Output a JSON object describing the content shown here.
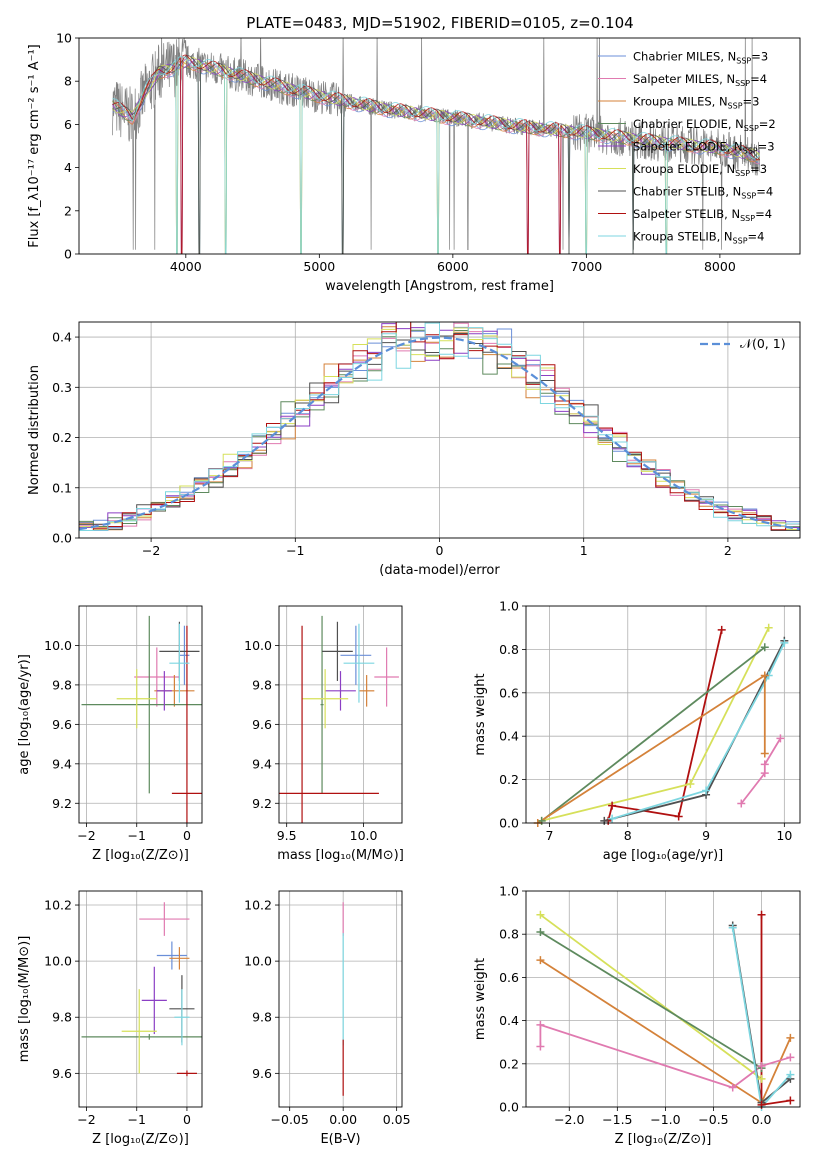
{
  "figure": {
    "title": "PLATE=0483, MJD=51902, FIBERID=0105, z=0.104"
  },
  "colors": {
    "Chabrier MILES": "#6b8fd8",
    "Salpeter MILES": "#e07ab0",
    "Kroupa MILES": "#d4823a",
    "Chabrier ELODIE": "#5e8a5e",
    "Salpeter ELODIE": "#8b3fc4",
    "Kroupa ELODIE": "#d6e05a",
    "Chabrier STELIB": "#505050",
    "Salpeter STELIB": "#b01010",
    "Kroupa STELIB": "#7dd6e0",
    "data": "#808080",
    "normal": "#5b8fd8"
  },
  "chart_data": [
    {
      "type": "line",
      "title": "PLATE=0483, MJD=51902, FIBERID=0105, z=0.104",
      "xlabel": "wavelength [Angstrom, rest frame]",
      "ylabel": "Flux [f_λ10⁻¹⁷ erg cm⁻² s⁻¹ A⁻¹]",
      "xlim": [
        3200,
        8600
      ],
      "ylim": [
        0,
        10
      ],
      "xticks": [
        4000,
        5000,
        6000,
        7000,
        8000
      ],
      "yticks": [
        0,
        2,
        4,
        6,
        8,
        10
      ],
      "legend": [
        "Chabrier MILES, N_SSP=3",
        "Salpeter MILES, N_SSP=4",
        "Kroupa MILES, N_SSP=3",
        "Chabrier ELODIE, N_SSP=2",
        "Salpeter ELODIE, N_SSP=3",
        "Kroupa ELODIE, N_SSP=3",
        "Chabrier STELIB, N_SSP=4",
        "Salpeter STELIB, N_SSP=4",
        "Kroupa STELIB, N_SSP=4"
      ],
      "legend_placement": "top-right",
      "continuum": {
        "x": [
          3450,
          3600,
          3700,
          3800,
          3900,
          4000,
          4200,
          4500,
          4800,
          5000,
          5500,
          6000,
          6500,
          7000,
          7500,
          8000,
          8300
        ],
        "y": [
          6.9,
          6.3,
          7.5,
          8.4,
          8.6,
          8.9,
          8.6,
          8.1,
          7.6,
          7.3,
          6.7,
          6.3,
          5.9,
          5.6,
          5.2,
          4.9,
          4.5
        ]
      }
    },
    {
      "type": "histogram",
      "xlabel": "(data-model)/error",
      "ylabel": "Normed distribution",
      "xlim": [
        -2.5,
        2.5
      ],
      "ylim": [
        0,
        0.43
      ],
      "xticks": [
        -2,
        -1,
        0,
        1,
        2
      ],
      "yticks": [
        0.0,
        0.1,
        0.2,
        0.3,
        0.4
      ],
      "bin_width": 0.1,
      "grid": true,
      "reference_curve": "N(0,1)",
      "legend": [
        "𝒩(0, 1)"
      ],
      "legend_placement": "top-right"
    },
    {
      "type": "scatter",
      "xlabel": "Z [log₁₀(Z/Z⊙)]",
      "ylabel": "age  [log₁₀(age/yr)]",
      "xlim": [
        -2.15,
        0.3
      ],
      "ylim": [
        9.1,
        10.2
      ],
      "xticks": [
        -2,
        -1,
        0
      ],
      "yticks": [
        9.2,
        9.4,
        9.6,
        9.8,
        10.0
      ],
      "points": [
        {
          "name": "Chabrier MILES",
          "x": -0.05,
          "y": 9.95,
          "xerr": 0.1,
          "yerr": 0.15
        },
        {
          "name": "Salpeter MILES",
          "x": -0.6,
          "y": 9.84,
          "xerr": 0.45,
          "yerr": 0.15
        },
        {
          "name": "Kroupa MILES",
          "x": -0.25,
          "y": 9.77,
          "xerr": 0.4,
          "yerr": 0.08
        },
        {
          "name": "Chabrier ELODIE",
          "x": -0.75,
          "y": 9.7,
          "xerr": 1.35,
          "yerr": 0.45
        },
        {
          "name": "Salpeter ELODIE",
          "x": -0.45,
          "y": 9.77,
          "xerr": 0.15,
          "yerr": 0.1
        },
        {
          "name": "Kroupa ELODIE",
          "x": -1.0,
          "y": 9.73,
          "xerr": 0.4,
          "yerr": 0.15
        },
        {
          "name": "Chabrier STELIB",
          "x": -0.15,
          "y": 9.97,
          "xerr": 0.4,
          "yerr": 0.15
        },
        {
          "name": "Salpeter STELIB",
          "x": 0.0,
          "y": 9.25,
          "xerr": 0.3,
          "yerr": 0.85
        },
        {
          "name": "Kroupa STELIB",
          "x": -0.15,
          "y": 9.91,
          "xerr": 0.2,
          "yerr": 0.2
        }
      ]
    },
    {
      "type": "scatter",
      "xlabel": "mass [log₁₀(M/M⊙)]",
      "xlim": [
        9.45,
        10.25
      ],
      "ylim": [
        9.1,
        10.2
      ],
      "xticks": [
        9.5,
        10.0
      ],
      "yticks": [
        9.2,
        9.4,
        9.6,
        9.8,
        10.0
      ],
      "points": [
        {
          "name": "Chabrier MILES",
          "x": 9.95,
          "y": 9.95,
          "xerr": 0.1,
          "yerr": 0.15
        },
        {
          "name": "Salpeter MILES",
          "x": 10.15,
          "y": 9.84,
          "xerr": 0.08,
          "yerr": 0.15
        },
        {
          "name": "Kroupa MILES",
          "x": 10.02,
          "y": 9.77,
          "xerr": 0.05,
          "yerr": 0.08
        },
        {
          "name": "Chabrier ELODIE",
          "x": 9.73,
          "y": 9.7,
          "xerr": 0.01,
          "yerr": 0.45
        },
        {
          "name": "Salpeter ELODIE",
          "x": 9.85,
          "y": 9.77,
          "xerr": 0.1,
          "yerr": 0.1
        },
        {
          "name": "Kroupa ELODIE",
          "x": 9.75,
          "y": 9.73,
          "xerr": 0.15,
          "yerr": 0.15
        },
        {
          "name": "Chabrier STELIB",
          "x": 9.83,
          "y": 9.97,
          "xerr": 0.1,
          "yerr": 0.15
        },
        {
          "name": "Salpeter STELIB",
          "x": 9.6,
          "y": 9.25,
          "xerr": 0.5,
          "yerr": 0.85
        },
        {
          "name": "Kroupa STELIB",
          "x": 9.97,
          "y": 9.91,
          "xerr": 0.1,
          "yerr": 0.2
        }
      ]
    },
    {
      "type": "line",
      "xlabel": "age  [log₁₀(age/yr)]",
      "ylabel": "mass weight",
      "xlim": [
        6.7,
        10.2
      ],
      "ylim": [
        0,
        1
      ],
      "xticks": [
        7,
        8,
        9,
        10
      ],
      "yticks": [
        0.0,
        0.2,
        0.4,
        0.6,
        0.8,
        1.0
      ],
      "series": [
        {
          "name": "Salpeter STELIB",
          "x": [
            7.75,
            7.8,
            8.65,
            9.2
          ],
          "y": [
            0.01,
            0.08,
            0.03,
            0.89
          ]
        },
        {
          "name": "Kroupa ELODIE",
          "x": [
            6.9,
            8.8,
            9.8
          ],
          "y": [
            0.01,
            0.18,
            0.9
          ]
        },
        {
          "name": "Chabrier STELIB",
          "x": [
            7.7,
            9.0,
            10.0
          ],
          "y": [
            0.01,
            0.13,
            0.84
          ]
        },
        {
          "name": "Chabrier ELODIE",
          "x": [
            6.9,
            9.75
          ],
          "y": [
            0.01,
            0.81
          ]
        },
        {
          "name": "Kroupa STELIB",
          "x": [
            7.8,
            9.0,
            9.8,
            10.0
          ],
          "y": [
            0.02,
            0.15,
            0.68,
            0.83
          ]
        },
        {
          "name": "Kroupa MILES",
          "x": [
            6.85,
            9.75,
            9.75
          ],
          "y": [
            0.0,
            0.68,
            0.32
          ]
        },
        {
          "name": "Salpeter MILES",
          "x": [
            9.45,
            9.75,
            9.75,
            9.95
          ],
          "y": [
            0.09,
            0.23,
            0.27,
            0.39
          ]
        }
      ]
    },
    {
      "type": "scatter",
      "xlabel": "Z [log₁₀(Z/Z⊙)]",
      "ylabel": "mass [log₁₀(M/M⊙)]",
      "xlim": [
        -2.15,
        0.3
      ],
      "ylim": [
        9.48,
        10.25
      ],
      "xticks": [
        -2,
        -1,
        0
      ],
      "yticks": [
        9.6,
        9.8,
        10.0,
        10.2
      ],
      "points": [
        {
          "name": "Chabrier MILES",
          "x": -0.3,
          "y": 10.02,
          "xerr": 0.3,
          "yerr": 0.05
        },
        {
          "name": "Salpeter MILES",
          "x": -0.45,
          "y": 10.15,
          "xerr": 0.5,
          "yerr": 0.06
        },
        {
          "name": "Kroupa MILES",
          "x": -0.15,
          "y": 10.01,
          "xerr": 0.2,
          "yerr": 0.04
        },
        {
          "name": "Chabrier ELODIE",
          "x": -0.75,
          "y": 9.73,
          "xerr": 1.35,
          "yerr": 0.01
        },
        {
          "name": "Salpeter ELODIE",
          "x": -0.65,
          "y": 9.86,
          "xerr": 0.25,
          "yerr": 0.12
        },
        {
          "name": "Kroupa ELODIE",
          "x": -0.95,
          "y": 9.75,
          "xerr": 0.35,
          "yerr": 0.15
        },
        {
          "name": "Chabrier STELIB",
          "x": -0.1,
          "y": 9.83,
          "xerr": 0.25,
          "yerr": 0.12
        },
        {
          "name": "Salpeter STELIB",
          "x": 0.0,
          "y": 9.6,
          "xerr": 0.2,
          "yerr": 0.01
        },
        {
          "name": "Kroupa STELIB",
          "x": -0.1,
          "y": 9.8,
          "xerr": 0.15,
          "yerr": 0.1
        }
      ]
    },
    {
      "type": "scatter",
      "xlabel": "E(B-V)",
      "xlim": [
        -0.06,
        0.055
      ],
      "ylim": [
        9.48,
        10.25
      ],
      "xticks": [
        -0.05,
        0.0,
        0.05
      ],
      "yticks": [
        9.6,
        9.8,
        10.0,
        10.2
      ],
      "points": [
        {
          "name": "Salpeter MILES",
          "x": 0.0,
          "y": 10.15,
          "xerr": 0.0,
          "yerr": 0.06
        },
        {
          "name": "Kroupa STELIB",
          "x": 0.0,
          "y": 9.9,
          "xerr": 0.0,
          "yerr": 0.2
        },
        {
          "name": "Salpeter STELIB",
          "x": 0.0,
          "y": 9.62,
          "xerr": 0.0,
          "yerr": 0.1
        }
      ]
    },
    {
      "type": "line",
      "xlabel": "Z [log₁₀(Z/Z⊙)]",
      "ylabel": "mass weight",
      "xlim": [
        -2.45,
        0.4
      ],
      "ylim": [
        0,
        1
      ],
      "xticks": [
        -2.0,
        -1.5,
        -1.0,
        -0.5,
        0.0
      ],
      "yticks": [
        0.0,
        0.2,
        0.4,
        0.6,
        0.8,
        1.0
      ],
      "series": [
        {
          "name": "Kroupa ELODIE",
          "x": [
            -2.3,
            0.0
          ],
          "y": [
            0.89,
            0.13
          ]
        },
        {
          "name": "Chabrier ELODIE",
          "x": [
            -2.3,
            0.0
          ],
          "y": [
            0.81,
            0.18
          ]
        },
        {
          "name": "Kroupa MILES",
          "x": [
            -2.3,
            0.0,
            0.3
          ],
          "y": [
            0.68,
            0.02,
            0.32
          ]
        },
        {
          "name": "Salpeter MILES",
          "x": [
            -2.3,
            -2.3,
            -0.3,
            0.0,
            0.3
          ],
          "y": [
            0.28,
            0.38,
            0.09,
            0.19,
            0.23
          ]
        },
        {
          "name": "Chabrier STELIB",
          "x": [
            -0.3,
            0.0,
            0.3
          ],
          "y": [
            0.84,
            0.02,
            0.13
          ]
        },
        {
          "name": "Kroupa STELIB",
          "x": [
            -0.3,
            0.0,
            0.3
          ],
          "y": [
            0.83,
            0.0,
            0.15
          ]
        },
        {
          "name": "Salpeter STELIB",
          "x": [
            0.0,
            0.0,
            0.3
          ],
          "y": [
            0.89,
            0.01,
            0.03
          ]
        }
      ]
    }
  ]
}
